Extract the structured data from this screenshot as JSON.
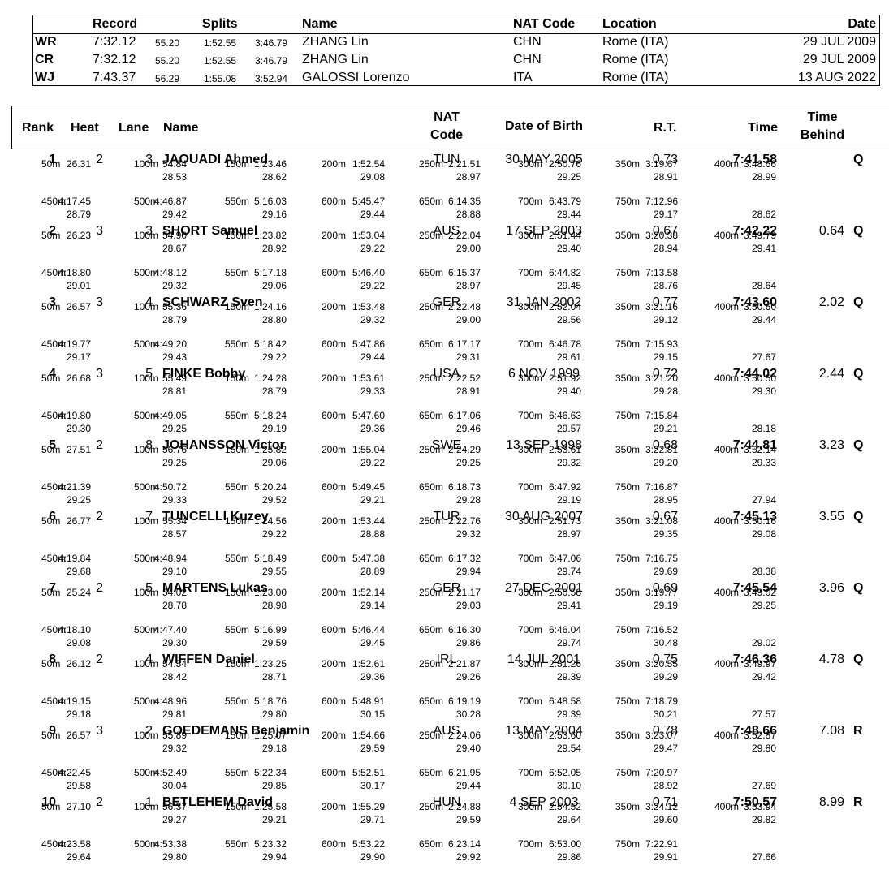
{
  "records": {
    "headers": {
      "record": "Record",
      "splits": "Splits",
      "name": "Name",
      "nat": "NAT Code",
      "location": "Location",
      "date": "Date"
    },
    "rows": [
      {
        "code": "WR",
        "time": "7:32.12",
        "splits": [
          "55.20",
          "1:52.55",
          "3:46.79"
        ],
        "name": "ZHANG Lin",
        "nat": "CHN",
        "location": "Rome (ITA)",
        "date": "29 JUL 2009"
      },
      {
        "code": "CR",
        "time": "7:32.12",
        "splits": [
          "55.20",
          "1:52.55",
          "3:46.79"
        ],
        "name": "ZHANG Lin",
        "nat": "CHN",
        "location": "Rome (ITA)",
        "date": "29 JUL 2009"
      },
      {
        "code": "WJ",
        "time": "7:43.37",
        "splits": [
          "56.29",
          "1:55.08",
          "3:52.94"
        ],
        "name": "GALOSSI Lorenzo",
        "nat": "ITA",
        "location": "Rome (ITA)",
        "date": "13 AUG 2022"
      }
    ]
  },
  "results_header": {
    "rank": "Rank",
    "heat": "Heat",
    "lane": "Lane",
    "name": "Name",
    "nat_line1": "NAT",
    "nat_line2": "Code",
    "dob": "Date of Birth",
    "rt": "R.T.",
    "time": "Time",
    "behind_line1": "Time",
    "behind_line2": "Behind"
  },
  "results": [
    {
      "rank": "1",
      "heat": "2",
      "lane": "3",
      "name": "JAOUADI Ahmed",
      "nat": "TUN",
      "dob": "30 MAY 2005",
      "rt": "0.73",
      "time": "7:41.58",
      "behind": "",
      "qual": "Q",
      "splits": [
        {
          "d": "50m",
          "t": "26.31",
          "l": ""
        },
        {
          "d": "100m",
          "t": "54.84",
          "l": "28.53"
        },
        {
          "d": "150m",
          "t": "1:23.46",
          "l": "28.62"
        },
        {
          "d": "200m",
          "t": "1:52.54",
          "l": "29.08"
        },
        {
          "d": "250m",
          "t": "2:21.51",
          "l": "28.97"
        },
        {
          "d": "300m",
          "t": "2:50.76",
          "l": "29.25"
        },
        {
          "d": "350m",
          "t": "3:19.67",
          "l": "28.91"
        },
        {
          "d": "400m",
          "t": "3:48.66",
          "l": "28.99"
        },
        {
          "d": "450m",
          "t": "4:17.45",
          "l": "28.79"
        },
        {
          "d": "500m",
          "t": "4:46.87",
          "l": "29.42"
        },
        {
          "d": "550m",
          "t": "5:16.03",
          "l": "29.16"
        },
        {
          "d": "600m",
          "t": "5:45.47",
          "l": "29.44"
        },
        {
          "d": "650m",
          "t": "6:14.35",
          "l": "28.88"
        },
        {
          "d": "700m",
          "t": "6:43.79",
          "l": "29.44"
        },
        {
          "d": "750m",
          "t": "7:12.96",
          "l": "29.17"
        },
        {
          "d": "",
          "t": "",
          "l": "28.62"
        }
      ]
    },
    {
      "rank": "2",
      "heat": "3",
      "lane": "3",
      "name": "SHORT Samuel",
      "nat": "AUS",
      "dob": "17 SEP 2003",
      "rt": "0.67",
      "time": "7:42.22",
      "behind": "0.64",
      "qual": "Q",
      "splits": [
        {
          "d": "50m",
          "t": "26.23",
          "l": ""
        },
        {
          "d": "100m",
          "t": "54.90",
          "l": "28.67"
        },
        {
          "d": "150m",
          "t": "1:23.82",
          "l": "28.92"
        },
        {
          "d": "200m",
          "t": "1:53.04",
          "l": "29.22"
        },
        {
          "d": "250m",
          "t": "2:22.04",
          "l": "29.00"
        },
        {
          "d": "300m",
          "t": "2:51.44",
          "l": "29.40"
        },
        {
          "d": "350m",
          "t": "3:20.38",
          "l": "28.94"
        },
        {
          "d": "400m",
          "t": "3:49.79",
          "l": "29.41"
        },
        {
          "d": "450m",
          "t": "4:18.80",
          "l": "29.01"
        },
        {
          "d": "500m",
          "t": "4:48.12",
          "l": "29.32"
        },
        {
          "d": "550m",
          "t": "5:17.18",
          "l": "29.06"
        },
        {
          "d": "600m",
          "t": "5:46.40",
          "l": "29.22"
        },
        {
          "d": "650m",
          "t": "6:15.37",
          "l": "28.97"
        },
        {
          "d": "700m",
          "t": "6:44.82",
          "l": "29.45"
        },
        {
          "d": "750m",
          "t": "7:13.58",
          "l": "28.76"
        },
        {
          "d": "",
          "t": "",
          "l": "28.64"
        }
      ]
    },
    {
      "rank": "3",
      "heat": "3",
      "lane": "4",
      "name": "SCHWARZ Sven",
      "nat": "GER",
      "dob": "31 JAN 2002",
      "rt": "0.77",
      "time": "7:43.60",
      "behind": "2.02",
      "qual": "Q",
      "splits": [
        {
          "d": "50m",
          "t": "26.57",
          "l": ""
        },
        {
          "d": "100m",
          "t": "55.36",
          "l": "28.79"
        },
        {
          "d": "150m",
          "t": "1:24.16",
          "l": "28.80"
        },
        {
          "d": "200m",
          "t": "1:53.48",
          "l": "29.32"
        },
        {
          "d": "250m",
          "t": "2:22.48",
          "l": "29.00"
        },
        {
          "d": "300m",
          "t": "2:52.04",
          "l": "29.56"
        },
        {
          "d": "350m",
          "t": "3:21.16",
          "l": "29.12"
        },
        {
          "d": "400m",
          "t": "3:50.60",
          "l": "29.44"
        },
        {
          "d": "450m",
          "t": "4:19.77",
          "l": "29.17"
        },
        {
          "d": "500m",
          "t": "4:49.20",
          "l": "29.43"
        },
        {
          "d": "550m",
          "t": "5:18.42",
          "l": "29.22"
        },
        {
          "d": "600m",
          "t": "5:47.86",
          "l": "29.44"
        },
        {
          "d": "650m",
          "t": "6:17.17",
          "l": "29.31"
        },
        {
          "d": "700m",
          "t": "6:46.78",
          "l": "29.61"
        },
        {
          "d": "750m",
          "t": "7:15.93",
          "l": "29.15"
        },
        {
          "d": "",
          "t": "",
          "l": "27.67"
        }
      ]
    },
    {
      "rank": "4",
      "heat": "3",
      "lane": "5",
      "name": "FINKE Bobby",
      "nat": "USA",
      "dob": "6 NOV 1999",
      "rt": "0.72",
      "time": "7:44.02",
      "behind": "2.44",
      "qual": "Q",
      "splits": [
        {
          "d": "50m",
          "t": "26.68",
          "l": ""
        },
        {
          "d": "100m",
          "t": "55.49",
          "l": "28.81"
        },
        {
          "d": "150m",
          "t": "1:24.28",
          "l": "28.79"
        },
        {
          "d": "200m",
          "t": "1:53.61",
          "l": "29.33"
        },
        {
          "d": "250m",
          "t": "2:22.52",
          "l": "28.91"
        },
        {
          "d": "300m",
          "t": "2:51.92",
          "l": "29.40"
        },
        {
          "d": "350m",
          "t": "3:21.20",
          "l": "29.28"
        },
        {
          "d": "400m",
          "t": "3:50.50",
          "l": "29.30"
        },
        {
          "d": "450m",
          "t": "4:19.80",
          "l": "29.30"
        },
        {
          "d": "500m",
          "t": "4:49.05",
          "l": "29.25"
        },
        {
          "d": "550m",
          "t": "5:18.24",
          "l": "29.19"
        },
        {
          "d": "600m",
          "t": "5:47.60",
          "l": "29.36"
        },
        {
          "d": "650m",
          "t": "6:17.06",
          "l": "29.46"
        },
        {
          "d": "700m",
          "t": "6:46.63",
          "l": "29.57"
        },
        {
          "d": "750m",
          "t": "7:15.84",
          "l": "29.21"
        },
        {
          "d": "",
          "t": "",
          "l": "28.18"
        }
      ]
    },
    {
      "rank": "5",
      "heat": "2",
      "lane": "8",
      "name": "JOHANSSON Victor",
      "nat": "SWE",
      "dob": "13 SEP 1998",
      "rt": "0.68",
      "time": "7:44.81",
      "behind": "3.23",
      "qual": "Q",
      "splits": [
        {
          "d": "50m",
          "t": "27.51",
          "l": ""
        },
        {
          "d": "100m",
          "t": "56.76",
          "l": "29.25"
        },
        {
          "d": "150m",
          "t": "1:25.82",
          "l": "29.06"
        },
        {
          "d": "200m",
          "t": "1:55.04",
          "l": "29.22"
        },
        {
          "d": "250m",
          "t": "2:24.29",
          "l": "29.25"
        },
        {
          "d": "300m",
          "t": "2:53.61",
          "l": "29.32"
        },
        {
          "d": "350m",
          "t": "3:22.81",
          "l": "29.20"
        },
        {
          "d": "400m",
          "t": "3:52.14",
          "l": "29.33"
        },
        {
          "d": "450m",
          "t": "4:21.39",
          "l": "29.25"
        },
        {
          "d": "500m",
          "t": "4:50.72",
          "l": "29.33"
        },
        {
          "d": "550m",
          "t": "5:20.24",
          "l": "29.52"
        },
        {
          "d": "600m",
          "t": "5:49.45",
          "l": "29.21"
        },
        {
          "d": "650m",
          "t": "6:18.73",
          "l": "29.28"
        },
        {
          "d": "700m",
          "t": "6:47.92",
          "l": "29.19"
        },
        {
          "d": "750m",
          "t": "7:16.87",
          "l": "28.95"
        },
        {
          "d": "",
          "t": "",
          "l": "27.94"
        }
      ]
    },
    {
      "rank": "6",
      "heat": "2",
      "lane": "7",
      "name": "TUNCELLI Kuzey",
      "nat": "TUR",
      "dob": "30 AUG 2007",
      "rt": "0.67",
      "time": "7:45.13",
      "behind": "3.55",
      "qual": "Q",
      "splits": [
        {
          "d": "50m",
          "t": "26.77",
          "l": ""
        },
        {
          "d": "100m",
          "t": "55.34",
          "l": "28.57"
        },
        {
          "d": "150m",
          "t": "1:24.56",
          "l": "29.22"
        },
        {
          "d": "200m",
          "t": "1:53.44",
          "l": "28.88"
        },
        {
          "d": "250m",
          "t": "2:22.76",
          "l": "29.32"
        },
        {
          "d": "300m",
          "t": "2:51.73",
          "l": "28.97"
        },
        {
          "d": "350m",
          "t": "3:21.08",
          "l": "29.35"
        },
        {
          "d": "400m",
          "t": "3:50.16",
          "l": "29.08"
        },
        {
          "d": "450m",
          "t": "4:19.84",
          "l": "29.68"
        },
        {
          "d": "500m",
          "t": "4:48.94",
          "l": "29.10"
        },
        {
          "d": "550m",
          "t": "5:18.49",
          "l": "29.55"
        },
        {
          "d": "600m",
          "t": "5:47.38",
          "l": "28.89"
        },
        {
          "d": "650m",
          "t": "6:17.32",
          "l": "29.94"
        },
        {
          "d": "700m",
          "t": "6:47.06",
          "l": "29.74"
        },
        {
          "d": "750m",
          "t": "7:16.75",
          "l": "29.69"
        },
        {
          "d": "",
          "t": "",
          "l": "28.38"
        }
      ]
    },
    {
      "rank": "7",
      "heat": "2",
      "lane": "5",
      "name": "MARTENS Lukas",
      "nat": "GER",
      "dob": "27 DEC 2001",
      "rt": "0.69",
      "time": "7:45.54",
      "behind": "3.96",
      "qual": "Q",
      "splits": [
        {
          "d": "50m",
          "t": "25.24",
          "l": ""
        },
        {
          "d": "100m",
          "t": "54.02",
          "l": "28.78"
        },
        {
          "d": "150m",
          "t": "1:23.00",
          "l": "28.98"
        },
        {
          "d": "200m",
          "t": "1:52.14",
          "l": "29.14"
        },
        {
          "d": "250m",
          "t": "2:21.17",
          "l": "29.03"
        },
        {
          "d": "300m",
          "t": "2:50.58",
          "l": "29.41"
        },
        {
          "d": "350m",
          "t": "3:19.77",
          "l": "29.19"
        },
        {
          "d": "400m",
          "t": "3:49.02",
          "l": "29.25"
        },
        {
          "d": "450m",
          "t": "4:18.10",
          "l": "29.08"
        },
        {
          "d": "500m",
          "t": "4:47.40",
          "l": "29.30"
        },
        {
          "d": "550m",
          "t": "5:16.99",
          "l": "29.59"
        },
        {
          "d": "600m",
          "t": "5:46.44",
          "l": "29.45"
        },
        {
          "d": "650m",
          "t": "6:16.30",
          "l": "29.86"
        },
        {
          "d": "700m",
          "t": "6:46.04",
          "l": "29.74"
        },
        {
          "d": "750m",
          "t": "7:16.52",
          "l": "30.48"
        },
        {
          "d": "",
          "t": "",
          "l": "29.02"
        }
      ]
    },
    {
      "rank": "8",
      "heat": "2",
      "lane": "4",
      "name": "WIFFEN Daniel",
      "nat": "IRL",
      "dob": "14 JUL 2001",
      "rt": "0.75",
      "time": "7:46.36",
      "behind": "4.78",
      "qual": "Q",
      "splits": [
        {
          "d": "50m",
          "t": "26.12",
          "l": ""
        },
        {
          "d": "100m",
          "t": "54.54",
          "l": "28.42"
        },
        {
          "d": "150m",
          "t": "1:23.25",
          "l": "28.71"
        },
        {
          "d": "200m",
          "t": "1:52.61",
          "l": "29.36"
        },
        {
          "d": "250m",
          "t": "2:21.87",
          "l": "29.26"
        },
        {
          "d": "300m",
          "t": "2:51.26",
          "l": "29.39"
        },
        {
          "d": "350m",
          "t": "3:20.55",
          "l": "29.29"
        },
        {
          "d": "400m",
          "t": "3:49.97",
          "l": "29.42"
        },
        {
          "d": "450m",
          "t": "4:19.15",
          "l": "29.18"
        },
        {
          "d": "500m",
          "t": "4:48.96",
          "l": "29.81"
        },
        {
          "d": "550m",
          "t": "5:18.76",
          "l": "29.80"
        },
        {
          "d": "600m",
          "t": "5:48.91",
          "l": "30.15"
        },
        {
          "d": "650m",
          "t": "6:19.19",
          "l": "30.28"
        },
        {
          "d": "700m",
          "t": "6:48.58",
          "l": "29.39"
        },
        {
          "d": "750m",
          "t": "7:18.79",
          "l": "30.21"
        },
        {
          "d": "",
          "t": "",
          "l": "27.57"
        }
      ]
    },
    {
      "rank": "9",
      "heat": "3",
      "lane": "2",
      "name": "GOEDEMANS Benjamin",
      "nat": "AUS",
      "dob": "13 MAY 2004",
      "rt": "0.78",
      "time": "7:48.66",
      "behind": "7.08",
      "qual": "R",
      "splits": [
        {
          "d": "50m",
          "t": "26.57",
          "l": ""
        },
        {
          "d": "100m",
          "t": "55.89",
          "l": "29.32"
        },
        {
          "d": "150m",
          "t": "1:25.07",
          "l": "29.18"
        },
        {
          "d": "200m",
          "t": "1:54.66",
          "l": "29.59"
        },
        {
          "d": "250m",
          "t": "2:24.06",
          "l": "29.40"
        },
        {
          "d": "300m",
          "t": "2:53.60",
          "l": "29.54"
        },
        {
          "d": "350m",
          "t": "3:23.07",
          "l": "29.47"
        },
        {
          "d": "400m",
          "t": "3:52.87",
          "l": "29.80"
        },
        {
          "d": "450m",
          "t": "4:22.45",
          "l": "29.58"
        },
        {
          "d": "500m",
          "t": "4:52.49",
          "l": "30.04"
        },
        {
          "d": "550m",
          "t": "5:22.34",
          "l": "29.85"
        },
        {
          "d": "600m",
          "t": "5:52.51",
          "l": "30.17"
        },
        {
          "d": "650m",
          "t": "6:21.95",
          "l": "29.44"
        },
        {
          "d": "700m",
          "t": "6:52.05",
          "l": "30.10"
        },
        {
          "d": "750m",
          "t": "7:20.97",
          "l": "28.92"
        },
        {
          "d": "",
          "t": "",
          "l": "27.69"
        }
      ]
    },
    {
      "rank": "10",
      "heat": "2",
      "lane": "1",
      "name": "BETLEHEM David",
      "nat": "HUN",
      "dob": "4 SEP 2003",
      "rt": "0.71",
      "time": "7:50.57",
      "behind": "8.99",
      "qual": "R",
      "splits": [
        {
          "d": "50m",
          "t": "27.10",
          "l": ""
        },
        {
          "d": "100m",
          "t": "56.37",
          "l": "29.27"
        },
        {
          "d": "150m",
          "t": "1:25.58",
          "l": "29.21"
        },
        {
          "d": "200m",
          "t": "1:55.29",
          "l": "29.71"
        },
        {
          "d": "250m",
          "t": "2:24.88",
          "l": "29.59"
        },
        {
          "d": "300m",
          "t": "2:54.52",
          "l": "29.64"
        },
        {
          "d": "350m",
          "t": "3:24.12",
          "l": "29.60"
        },
        {
          "d": "400m",
          "t": "3:53.94",
          "l": "29.82"
        },
        {
          "d": "450m",
          "t": "4:23.58",
          "l": "29.64"
        },
        {
          "d": "500m",
          "t": "4:53.38",
          "l": "29.80"
        },
        {
          "d": "550m",
          "t": "5:23.32",
          "l": "29.94"
        },
        {
          "d": "600m",
          "t": "5:53.22",
          "l": "29.90"
        },
        {
          "d": "650m",
          "t": "6:23.14",
          "l": "29.92"
        },
        {
          "d": "700m",
          "t": "6:53.00",
          "l": "29.86"
        },
        {
          "d": "750m",
          "t": "7:22.91",
          "l": "29.91"
        },
        {
          "d": "",
          "t": "",
          "l": "27.66"
        }
      ]
    }
  ]
}
